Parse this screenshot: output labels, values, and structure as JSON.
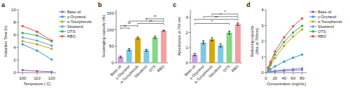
{
  "chart_data": [
    {
      "type": "line",
      "title": "a",
      "x": [
        100,
        110,
        120
      ],
      "series": [
        {
          "name": "Base oil",
          "color": "#9B59B6",
          "marker": "o",
          "values": [
            0.4,
            0.25,
            0.12
          ]
        },
        {
          "name": "γ-Oryzanol",
          "color": "#3498DB",
          "marker": "o",
          "values": [
            4.5,
            3.5,
            2.1
          ]
        },
        {
          "name": "α-Tocopherols",
          "color": "#C8A800",
          "marker": "o",
          "values": [
            5.0,
            4.5,
            3.8
          ]
        },
        {
          "name": "Sitosterol",
          "color": "#6495ED",
          "marker": "o",
          "values": [
            5.6,
            5.1,
            4.3
          ]
        },
        {
          "name": "OTS",
          "color": "#27AE60",
          "marker": "o",
          "values": [
            6.3,
            5.9,
            5.0
          ]
        },
        {
          "name": "RBO",
          "color": "#E74C3C",
          "marker": "o",
          "values": [
            7.4,
            6.5,
            5.1
          ]
        }
      ],
      "xlabel": "Tempreture ( C)",
      "ylabel": "Induction Time (h)",
      "xlim": [
        97,
        123
      ],
      "ylim": [
        0,
        10
      ],
      "xticks": [
        100,
        110,
        120
      ],
      "yticks": [
        0,
        2,
        4,
        6,
        8,
        10
      ],
      "legend": "right"
    },
    {
      "type": "bar",
      "title": "b",
      "categories": [
        "Base oil",
        "γ-Oryzanol",
        "α-Tocopherols",
        "Sitosterol",
        "OTS",
        "RBO"
      ],
      "values": [
        18,
        40,
        75,
        38,
        77,
        97
      ],
      "errors": [
        2.5,
        3.5,
        3.0,
        3.0,
        3.5,
        1.5
      ],
      "colors": [
        "#C9A0DC",
        "#7EC8E3",
        "#D4A800",
        "#7EC8E3",
        "#82D982",
        "#F4A0A0"
      ],
      "ylabel": "Scavenging capacity (%)",
      "ylim": [
        0,
        160
      ],
      "yticks": [
        0,
        50,
        100,
        150
      ],
      "annotations": [
        {
          "text": "**",
          "from": "Base oil",
          "to": "γ-Oryzanol",
          "y": 105,
          "drop": 4
        },
        {
          "text": "**",
          "from": "Base oil",
          "to": "α-Tocopherols",
          "y": 112,
          "drop": 4
        },
        {
          "text": "*",
          "from": "γ-Oryzanol",
          "to": "RBO",
          "y": 126,
          "drop": 4
        },
        {
          "text": "**",
          "from": "α-Tocopherols",
          "to": "RBO",
          "y": 119,
          "drop": 4
        },
        {
          "text": "**",
          "from": "Sitosterol",
          "to": "RBO",
          "y": 133,
          "drop": 4
        }
      ]
    },
    {
      "type": "bar",
      "title": "c",
      "categories": [
        "Base oil",
        "γ-Oryzanol",
        "α-Tocopherols",
        "Sitosterol",
        "OTS",
        "RBO"
      ],
      "values": [
        0.55,
        1.35,
        1.55,
        1.15,
        2.0,
        2.55
      ],
      "errors": [
        0.08,
        0.1,
        0.1,
        0.1,
        0.1,
        0.08
      ],
      "colors": [
        "#C9A0DC",
        "#7EC8E3",
        "#D4A800",
        "#7EC8E3",
        "#82D982",
        "#F4A0A0"
      ],
      "ylabel": "Absorbance at 700 nm",
      "ylim": [
        0,
        3.5
      ],
      "yticks": [
        0,
        1,
        2,
        3
      ],
      "annotations": [
        {
          "text": "*",
          "from": "Base oil",
          "to": "OTS",
          "y": 2.6,
          "drop": 0.09
        },
        {
          "text": "**",
          "from": "Base oil",
          "to": "RBO",
          "y": 2.87,
          "drop": 0.09
        },
        {
          "text": "*",
          "from": "γ-Oryzanol",
          "to": "RBO",
          "y": 3.05,
          "drop": 0.09
        },
        {
          "text": "*",
          "from": "α-Tocopherols",
          "to": "RBO",
          "y": 3.22,
          "drop": 0.09
        }
      ]
    },
    {
      "type": "line",
      "title": "d",
      "x": [
        5,
        10,
        20,
        40,
        60,
        80
      ],
      "series": [
        {
          "name": "Base oil",
          "color": "#9B59B6",
          "marker": "o",
          "values": [
            0.03,
            0.05,
            0.08,
            0.12,
            0.15,
            0.18
          ]
        },
        {
          "name": "γ-Oryzanol",
          "color": "#3498DB",
          "marker": "o",
          "values": [
            0.12,
            0.22,
            0.4,
            0.7,
            0.95,
            1.15
          ]
        },
        {
          "name": "α-Tocopherols",
          "color": "#C8A800",
          "marker": "o",
          "values": [
            0.22,
            0.45,
            0.92,
            1.7,
            2.3,
            2.75
          ]
        },
        {
          "name": "Sitosterol",
          "color": "#6495ED",
          "marker": "o",
          "values": [
            0.04,
            0.07,
            0.12,
            0.18,
            0.23,
            0.28
          ]
        },
        {
          "name": "OTS",
          "color": "#27AE60",
          "marker": "o",
          "values": [
            0.28,
            0.56,
            1.15,
            1.95,
            2.55,
            2.98
          ]
        },
        {
          "name": "RBO",
          "color": "#E74C3C",
          "marker": "o",
          "values": [
            0.32,
            0.68,
            1.35,
            2.25,
            2.95,
            3.45
          ]
        }
      ],
      "xlabel": "Concentration (mg/mL)",
      "ylabel": "Reducing capacity\n(Abs at 700nm)",
      "xlim": [
        0,
        90
      ],
      "ylim": [
        0,
        4.0
      ],
      "xticks": [
        0,
        20,
        40,
        60,
        80
      ],
      "yticks": [
        0,
        1,
        2,
        3,
        4
      ],
      "legend": "right"
    }
  ]
}
